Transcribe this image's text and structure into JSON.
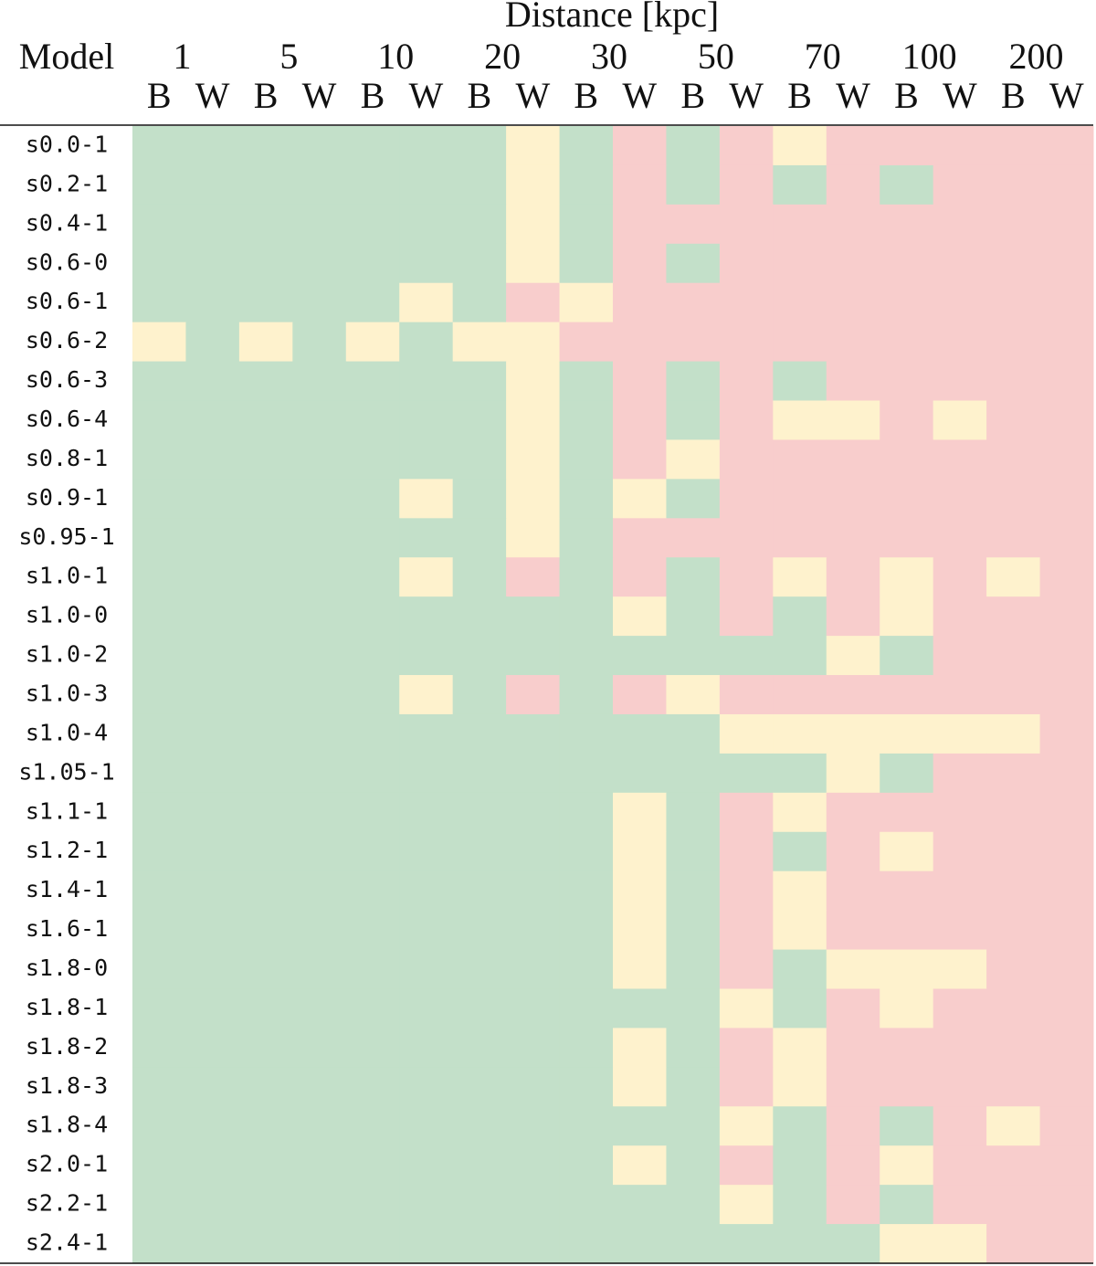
{
  "table": {
    "title": "Distance [kpc]",
    "row_header": "Model",
    "distances": [
      "1",
      "5",
      "10",
      "20",
      "30",
      "50",
      "70",
      "100",
      "200"
    ],
    "subheaders": [
      "B",
      "W"
    ],
    "rows": [
      {
        "model": "s0.0-1",
        "cells": [
          "#c3e0c9",
          "#c3e0c9",
          "#c3e0c9",
          "#c3e0c9",
          "#c3e0c9",
          "#c3e0c9",
          "#c3e0c9",
          "#fef2cd",
          "#c3e0c9",
          "#f8cdcc",
          "#c3e0c9",
          "#f8cdcc",
          "#fef2cd",
          "#f8cdcc",
          "#f8cdcc",
          "#f8cdcc",
          "#f8cdcc",
          "#f8cdcc"
        ]
      },
      {
        "model": "s0.2-1",
        "cells": [
          "#c3e0c9",
          "#c3e0c9",
          "#c3e0c9",
          "#c3e0c9",
          "#c3e0c9",
          "#c3e0c9",
          "#c3e0c9",
          "#fef2cd",
          "#c3e0c9",
          "#f8cdcc",
          "#c3e0c9",
          "#f8cdcc",
          "#c3e0c9",
          "#f8cdcc",
          "#c3e0c9",
          "#f8cdcc",
          "#f8cdcc",
          "#f8cdcc"
        ]
      },
      {
        "model": "s0.4-1",
        "cells": [
          "#c3e0c9",
          "#c3e0c9",
          "#c3e0c9",
          "#c3e0c9",
          "#c3e0c9",
          "#c3e0c9",
          "#c3e0c9",
          "#fef2cd",
          "#c3e0c9",
          "#f8cdcc",
          "#f8cdcc",
          "#f8cdcc",
          "#f8cdcc",
          "#f8cdcc",
          "#f8cdcc",
          "#f8cdcc",
          "#f8cdcc",
          "#f8cdcc"
        ]
      },
      {
        "model": "s0.6-0",
        "cells": [
          "#c3e0c9",
          "#c3e0c9",
          "#c3e0c9",
          "#c3e0c9",
          "#c3e0c9",
          "#c3e0c9",
          "#c3e0c9",
          "#fef2cd",
          "#c3e0c9",
          "#f8cdcc",
          "#c3e0c9",
          "#f8cdcc",
          "#f8cdcc",
          "#f8cdcc",
          "#f8cdcc",
          "#f8cdcc",
          "#f8cdcc",
          "#f8cdcc"
        ]
      },
      {
        "model": "s0.6-1",
        "cells": [
          "#c3e0c9",
          "#c3e0c9",
          "#c3e0c9",
          "#c3e0c9",
          "#c3e0c9",
          "#fef2cd",
          "#c3e0c9",
          "#f8cdcc",
          "#fef2cd",
          "#f8cdcc",
          "#f8cdcc",
          "#f8cdcc",
          "#f8cdcc",
          "#f8cdcc",
          "#f8cdcc",
          "#f8cdcc",
          "#f8cdcc",
          "#f8cdcc"
        ]
      },
      {
        "model": "s0.6-2",
        "cells": [
          "#fef2cd",
          "#c3e0c9",
          "#fef2cd",
          "#c3e0c9",
          "#fef2cd",
          "#c3e0c9",
          "#fef2cd",
          "#fef2cd",
          "#f8cdcc",
          "#f8cdcc",
          "#f8cdcc",
          "#f8cdcc",
          "#f8cdcc",
          "#f8cdcc",
          "#f8cdcc",
          "#f8cdcc",
          "#f8cdcc",
          "#f8cdcc"
        ]
      },
      {
        "model": "s0.6-3",
        "cells": [
          "#c3e0c9",
          "#c3e0c9",
          "#c3e0c9",
          "#c3e0c9",
          "#c3e0c9",
          "#c3e0c9",
          "#c3e0c9",
          "#fef2cd",
          "#c3e0c9",
          "#f8cdcc",
          "#c3e0c9",
          "#f8cdcc",
          "#c3e0c9",
          "#f8cdcc",
          "#f8cdcc",
          "#f8cdcc",
          "#f8cdcc",
          "#f8cdcc"
        ]
      },
      {
        "model": "s0.6-4",
        "cells": [
          "#c3e0c9",
          "#c3e0c9",
          "#c3e0c9",
          "#c3e0c9",
          "#c3e0c9",
          "#c3e0c9",
          "#c3e0c9",
          "#fef2cd",
          "#c3e0c9",
          "#f8cdcc",
          "#c3e0c9",
          "#f8cdcc",
          "#fef2cd",
          "#fef2cd",
          "#f8cdcc",
          "#fef2cd",
          "#f8cdcc",
          "#f8cdcc"
        ]
      },
      {
        "model": "s0.8-1",
        "cells": [
          "#c3e0c9",
          "#c3e0c9",
          "#c3e0c9",
          "#c3e0c9",
          "#c3e0c9",
          "#c3e0c9",
          "#c3e0c9",
          "#fef2cd",
          "#c3e0c9",
          "#f8cdcc",
          "#fef2cd",
          "#f8cdcc",
          "#f8cdcc",
          "#f8cdcc",
          "#f8cdcc",
          "#f8cdcc",
          "#f8cdcc",
          "#f8cdcc"
        ]
      },
      {
        "model": "s0.9-1",
        "cells": [
          "#c3e0c9",
          "#c3e0c9",
          "#c3e0c9",
          "#c3e0c9",
          "#c3e0c9",
          "#fef2cd",
          "#c3e0c9",
          "#fef2cd",
          "#c3e0c9",
          "#fef2cd",
          "#c3e0c9",
          "#f8cdcc",
          "#f8cdcc",
          "#f8cdcc",
          "#f8cdcc",
          "#f8cdcc",
          "#f8cdcc",
          "#f8cdcc"
        ]
      },
      {
        "model": "s0.95-1",
        "cells": [
          "#c3e0c9",
          "#c3e0c9",
          "#c3e0c9",
          "#c3e0c9",
          "#c3e0c9",
          "#c3e0c9",
          "#c3e0c9",
          "#fef2cd",
          "#c3e0c9",
          "#f8cdcc",
          "#f8cdcc",
          "#f8cdcc",
          "#f8cdcc",
          "#f8cdcc",
          "#f8cdcc",
          "#f8cdcc",
          "#f8cdcc",
          "#f8cdcc"
        ]
      },
      {
        "model": "s1.0-1",
        "cells": [
          "#c3e0c9",
          "#c3e0c9",
          "#c3e0c9",
          "#c3e0c9",
          "#c3e0c9",
          "#fef2cd",
          "#c3e0c9",
          "#f8cdcc",
          "#c3e0c9",
          "#f8cdcc",
          "#c3e0c9",
          "#f8cdcc",
          "#fef2cd",
          "#f8cdcc",
          "#fef2cd",
          "#f8cdcc",
          "#fef2cd",
          "#f8cdcc"
        ]
      },
      {
        "model": "s1.0-0",
        "cells": [
          "#c3e0c9",
          "#c3e0c9",
          "#c3e0c9",
          "#c3e0c9",
          "#c3e0c9",
          "#c3e0c9",
          "#c3e0c9",
          "#c3e0c9",
          "#c3e0c9",
          "#fef2cd",
          "#c3e0c9",
          "#f8cdcc",
          "#c3e0c9",
          "#f8cdcc",
          "#fef2cd",
          "#f8cdcc",
          "#f8cdcc",
          "#f8cdcc"
        ]
      },
      {
        "model": "s1.0-2",
        "cells": [
          "#c3e0c9",
          "#c3e0c9",
          "#c3e0c9",
          "#c3e0c9",
          "#c3e0c9",
          "#c3e0c9",
          "#c3e0c9",
          "#c3e0c9",
          "#c3e0c9",
          "#c3e0c9",
          "#c3e0c9",
          "#c3e0c9",
          "#c3e0c9",
          "#fef2cd",
          "#c3e0c9",
          "#f8cdcc",
          "#f8cdcc",
          "#f8cdcc"
        ]
      },
      {
        "model": "s1.0-3",
        "cells": [
          "#c3e0c9",
          "#c3e0c9",
          "#c3e0c9",
          "#c3e0c9",
          "#c3e0c9",
          "#fef2cd",
          "#c3e0c9",
          "#f8cdcc",
          "#c3e0c9",
          "#f8cdcc",
          "#fef2cd",
          "#f8cdcc",
          "#f8cdcc",
          "#f8cdcc",
          "#f8cdcc",
          "#f8cdcc",
          "#f8cdcc",
          "#f8cdcc"
        ]
      },
      {
        "model": "s1.0-4",
        "cells": [
          "#c3e0c9",
          "#c3e0c9",
          "#c3e0c9",
          "#c3e0c9",
          "#c3e0c9",
          "#c3e0c9",
          "#c3e0c9",
          "#c3e0c9",
          "#c3e0c9",
          "#c3e0c9",
          "#c3e0c9",
          "#fef2cd",
          "#fef2cd",
          "#fef2cd",
          "#fef2cd",
          "#fef2cd",
          "#fef2cd",
          "#f8cdcc"
        ]
      },
      {
        "model": "s1.05-1",
        "cells": [
          "#c3e0c9",
          "#c3e0c9",
          "#c3e0c9",
          "#c3e0c9",
          "#c3e0c9",
          "#c3e0c9",
          "#c3e0c9",
          "#c3e0c9",
          "#c3e0c9",
          "#c3e0c9",
          "#c3e0c9",
          "#c3e0c9",
          "#c3e0c9",
          "#fef2cd",
          "#c3e0c9",
          "#f8cdcc",
          "#f8cdcc",
          "#f8cdcc"
        ]
      },
      {
        "model": "s1.1-1",
        "cells": [
          "#c3e0c9",
          "#c3e0c9",
          "#c3e0c9",
          "#c3e0c9",
          "#c3e0c9",
          "#c3e0c9",
          "#c3e0c9",
          "#c3e0c9",
          "#c3e0c9",
          "#fef2cd",
          "#c3e0c9",
          "#f8cdcc",
          "#fef2cd",
          "#f8cdcc",
          "#f8cdcc",
          "#f8cdcc",
          "#f8cdcc",
          "#f8cdcc"
        ]
      },
      {
        "model": "s1.2-1",
        "cells": [
          "#c3e0c9",
          "#c3e0c9",
          "#c3e0c9",
          "#c3e0c9",
          "#c3e0c9",
          "#c3e0c9",
          "#c3e0c9",
          "#c3e0c9",
          "#c3e0c9",
          "#fef2cd",
          "#c3e0c9",
          "#f8cdcc",
          "#c3e0c9",
          "#f8cdcc",
          "#fef2cd",
          "#f8cdcc",
          "#f8cdcc",
          "#f8cdcc"
        ]
      },
      {
        "model": "s1.4-1",
        "cells": [
          "#c3e0c9",
          "#c3e0c9",
          "#c3e0c9",
          "#c3e0c9",
          "#c3e0c9",
          "#c3e0c9",
          "#c3e0c9",
          "#c3e0c9",
          "#c3e0c9",
          "#fef2cd",
          "#c3e0c9",
          "#f8cdcc",
          "#fef2cd",
          "#f8cdcc",
          "#f8cdcc",
          "#f8cdcc",
          "#f8cdcc",
          "#f8cdcc"
        ]
      },
      {
        "model": "s1.6-1",
        "cells": [
          "#c3e0c9",
          "#c3e0c9",
          "#c3e0c9",
          "#c3e0c9",
          "#c3e0c9",
          "#c3e0c9",
          "#c3e0c9",
          "#c3e0c9",
          "#c3e0c9",
          "#fef2cd",
          "#c3e0c9",
          "#f8cdcc",
          "#fef2cd",
          "#f8cdcc",
          "#f8cdcc",
          "#f8cdcc",
          "#f8cdcc",
          "#f8cdcc"
        ]
      },
      {
        "model": "s1.8-0",
        "cells": [
          "#c3e0c9",
          "#c3e0c9",
          "#c3e0c9",
          "#c3e0c9",
          "#c3e0c9",
          "#c3e0c9",
          "#c3e0c9",
          "#c3e0c9",
          "#c3e0c9",
          "#fef2cd",
          "#c3e0c9",
          "#f8cdcc",
          "#c3e0c9",
          "#fef2cd",
          "#fef2cd",
          "#fef2cd",
          "#f8cdcc",
          "#f8cdcc"
        ]
      },
      {
        "model": "s1.8-1",
        "cells": [
          "#c3e0c9",
          "#c3e0c9",
          "#c3e0c9",
          "#c3e0c9",
          "#c3e0c9",
          "#c3e0c9",
          "#c3e0c9",
          "#c3e0c9",
          "#c3e0c9",
          "#c3e0c9",
          "#c3e0c9",
          "#fef2cd",
          "#c3e0c9",
          "#f8cdcc",
          "#fef2cd",
          "#f8cdcc",
          "#f8cdcc",
          "#f8cdcc"
        ]
      },
      {
        "model": "s1.8-2",
        "cells": [
          "#c3e0c9",
          "#c3e0c9",
          "#c3e0c9",
          "#c3e0c9",
          "#c3e0c9",
          "#c3e0c9",
          "#c3e0c9",
          "#c3e0c9",
          "#c3e0c9",
          "#fef2cd",
          "#c3e0c9",
          "#f8cdcc",
          "#fef2cd",
          "#f8cdcc",
          "#f8cdcc",
          "#f8cdcc",
          "#f8cdcc",
          "#f8cdcc"
        ]
      },
      {
        "model": "s1.8-3",
        "cells": [
          "#c3e0c9",
          "#c3e0c9",
          "#c3e0c9",
          "#c3e0c9",
          "#c3e0c9",
          "#c3e0c9",
          "#c3e0c9",
          "#c3e0c9",
          "#c3e0c9",
          "#fef2cd",
          "#c3e0c9",
          "#f8cdcc",
          "#fef2cd",
          "#f8cdcc",
          "#f8cdcc",
          "#f8cdcc",
          "#f8cdcc",
          "#f8cdcc"
        ]
      },
      {
        "model": "s1.8-4",
        "cells": [
          "#c3e0c9",
          "#c3e0c9",
          "#c3e0c9",
          "#c3e0c9",
          "#c3e0c9",
          "#c3e0c9",
          "#c3e0c9",
          "#c3e0c9",
          "#c3e0c9",
          "#c3e0c9",
          "#c3e0c9",
          "#fef2cd",
          "#c3e0c9",
          "#f8cdcc",
          "#c3e0c9",
          "#f8cdcc",
          "#fef2cd",
          "#f8cdcc"
        ]
      },
      {
        "model": "s2.0-1",
        "cells": [
          "#c3e0c9",
          "#c3e0c9",
          "#c3e0c9",
          "#c3e0c9",
          "#c3e0c9",
          "#c3e0c9",
          "#c3e0c9",
          "#c3e0c9",
          "#c3e0c9",
          "#fef2cd",
          "#c3e0c9",
          "#f8cdcc",
          "#c3e0c9",
          "#f8cdcc",
          "#fef2cd",
          "#f8cdcc",
          "#f8cdcc",
          "#f8cdcc"
        ]
      },
      {
        "model": "s2.2-1",
        "cells": [
          "#c3e0c9",
          "#c3e0c9",
          "#c3e0c9",
          "#c3e0c9",
          "#c3e0c9",
          "#c3e0c9",
          "#c3e0c9",
          "#c3e0c9",
          "#c3e0c9",
          "#c3e0c9",
          "#c3e0c9",
          "#fef2cd",
          "#c3e0c9",
          "#f8cdcc",
          "#c3e0c9",
          "#f8cdcc",
          "#f8cdcc",
          "#f8cdcc"
        ]
      },
      {
        "model": "s2.4-1",
        "cells": [
          "#c3e0c9",
          "#c3e0c9",
          "#c3e0c9",
          "#c3e0c9",
          "#c3e0c9",
          "#c3e0c9",
          "#c3e0c9",
          "#c3e0c9",
          "#c3e0c9",
          "#c3e0c9",
          "#c3e0c9",
          "#c3e0c9",
          "#c3e0c9",
          "#c3e0c9",
          "#fef2cd",
          "#fef2cd",
          "#f8cdcc",
          "#f8cdcc"
        ]
      }
    ]
  }
}
